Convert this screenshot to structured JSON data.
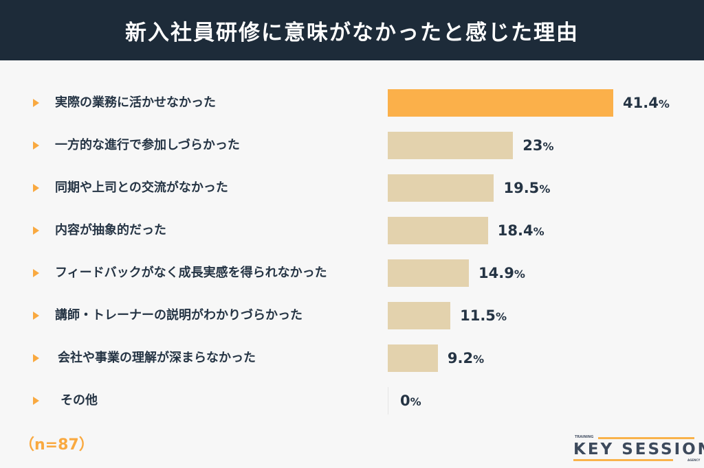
{
  "title": "新入社員研修に意味がなかったと感じた理由",
  "sample_note": "（n=87）",
  "logo": {
    "top": "TRAINING",
    "main": "KEY SESSION",
    "bottom": "AGENCY"
  },
  "colors": {
    "header": "#1d2b39",
    "highlight": "#fbb04a",
    "bar": "#e3d2ad",
    "bullet": "#f9a940"
  },
  "chart_data": {
    "type": "bar",
    "orientation": "horizontal",
    "title": "新入社員研修に意味がなかったと感じた理由",
    "categories": [
      "実際の業務に活かせなかった",
      "一方的な進行で参加しづらかった",
      "同期や上司との交流がなかった",
      "内容が抽象的だった",
      "フィードバックがなく成長実感を得られなかった",
      "講師・トレーナーの説明がわかりづらかった",
      "会社や事業の理解が深まらなかった",
      "その他"
    ],
    "values": [
      41.4,
      23,
      19.5,
      18.4,
      14.9,
      11.5,
      9.2,
      0
    ],
    "value_labels": [
      "41.4",
      "23",
      "19.5",
      "18.4",
      "14.9",
      "11.5",
      "9.2",
      "0"
    ],
    "unit": "%",
    "highlight_index": 0,
    "grid": false
  }
}
